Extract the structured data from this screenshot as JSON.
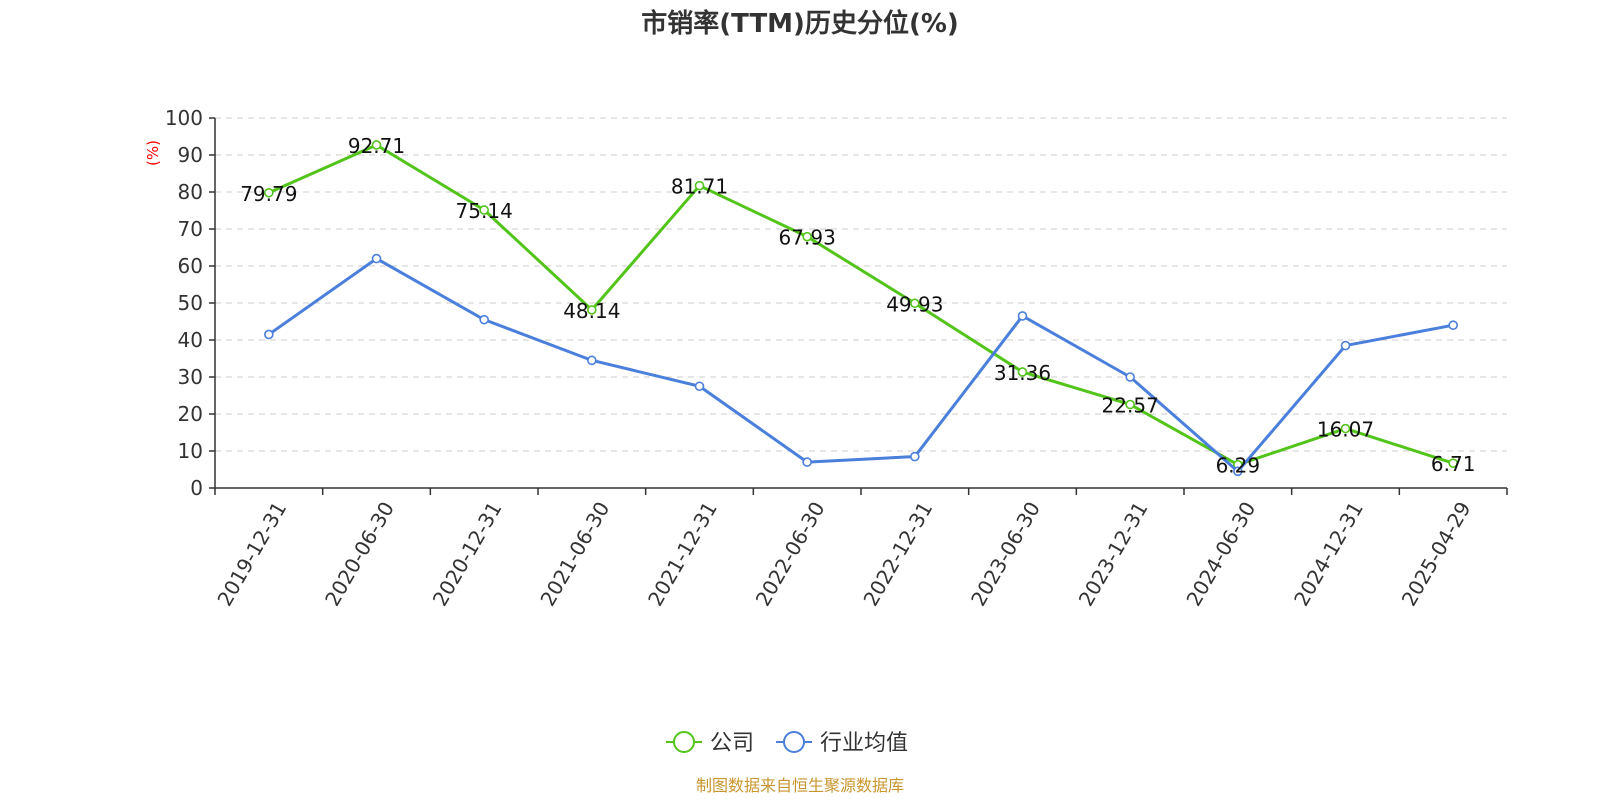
{
  "chart_data": {
    "type": "line",
    "title": "市销率(TTM)历史分位(%)",
    "ylabel": "(%)",
    "ylim": [
      0,
      100
    ],
    "yticks": [
      0,
      10,
      20,
      30,
      40,
      50,
      60,
      70,
      80,
      90,
      100
    ],
    "categories": [
      "2019-12-31",
      "2020-06-30",
      "2020-12-31",
      "2021-06-30",
      "2021-12-31",
      "2022-06-30",
      "2022-12-31",
      "2023-06-30",
      "2023-12-31",
      "2024-06-30",
      "2024-12-31",
      "2025-04-29"
    ],
    "grid": true,
    "legend_position": "bottom-center",
    "series": [
      {
        "name": "公司",
        "color": "#52c41a",
        "values": [
          79.79,
          92.71,
          75.14,
          48.14,
          81.71,
          67.93,
          49.93,
          31.36,
          22.57,
          6.29,
          16.07,
          6.71
        ],
        "labels": [
          "79.79",
          "92.71",
          "75.14",
          "48.14",
          "81.71",
          "67.93",
          "49.93",
          "31.36",
          "22.57",
          "6.29",
          "16.07",
          "6.71"
        ]
      },
      {
        "name": "行业均值",
        "color": "#4a7fdc",
        "values": [
          41.5,
          62.0,
          45.5,
          34.5,
          27.5,
          7.0,
          8.5,
          46.5,
          30.0,
          4.5,
          38.5,
          44.0
        ]
      }
    ],
    "ylabel_color": "#ff0000",
    "source": "制图数据来自恒生聚源数据库",
    "source_color": "#c8962e"
  }
}
